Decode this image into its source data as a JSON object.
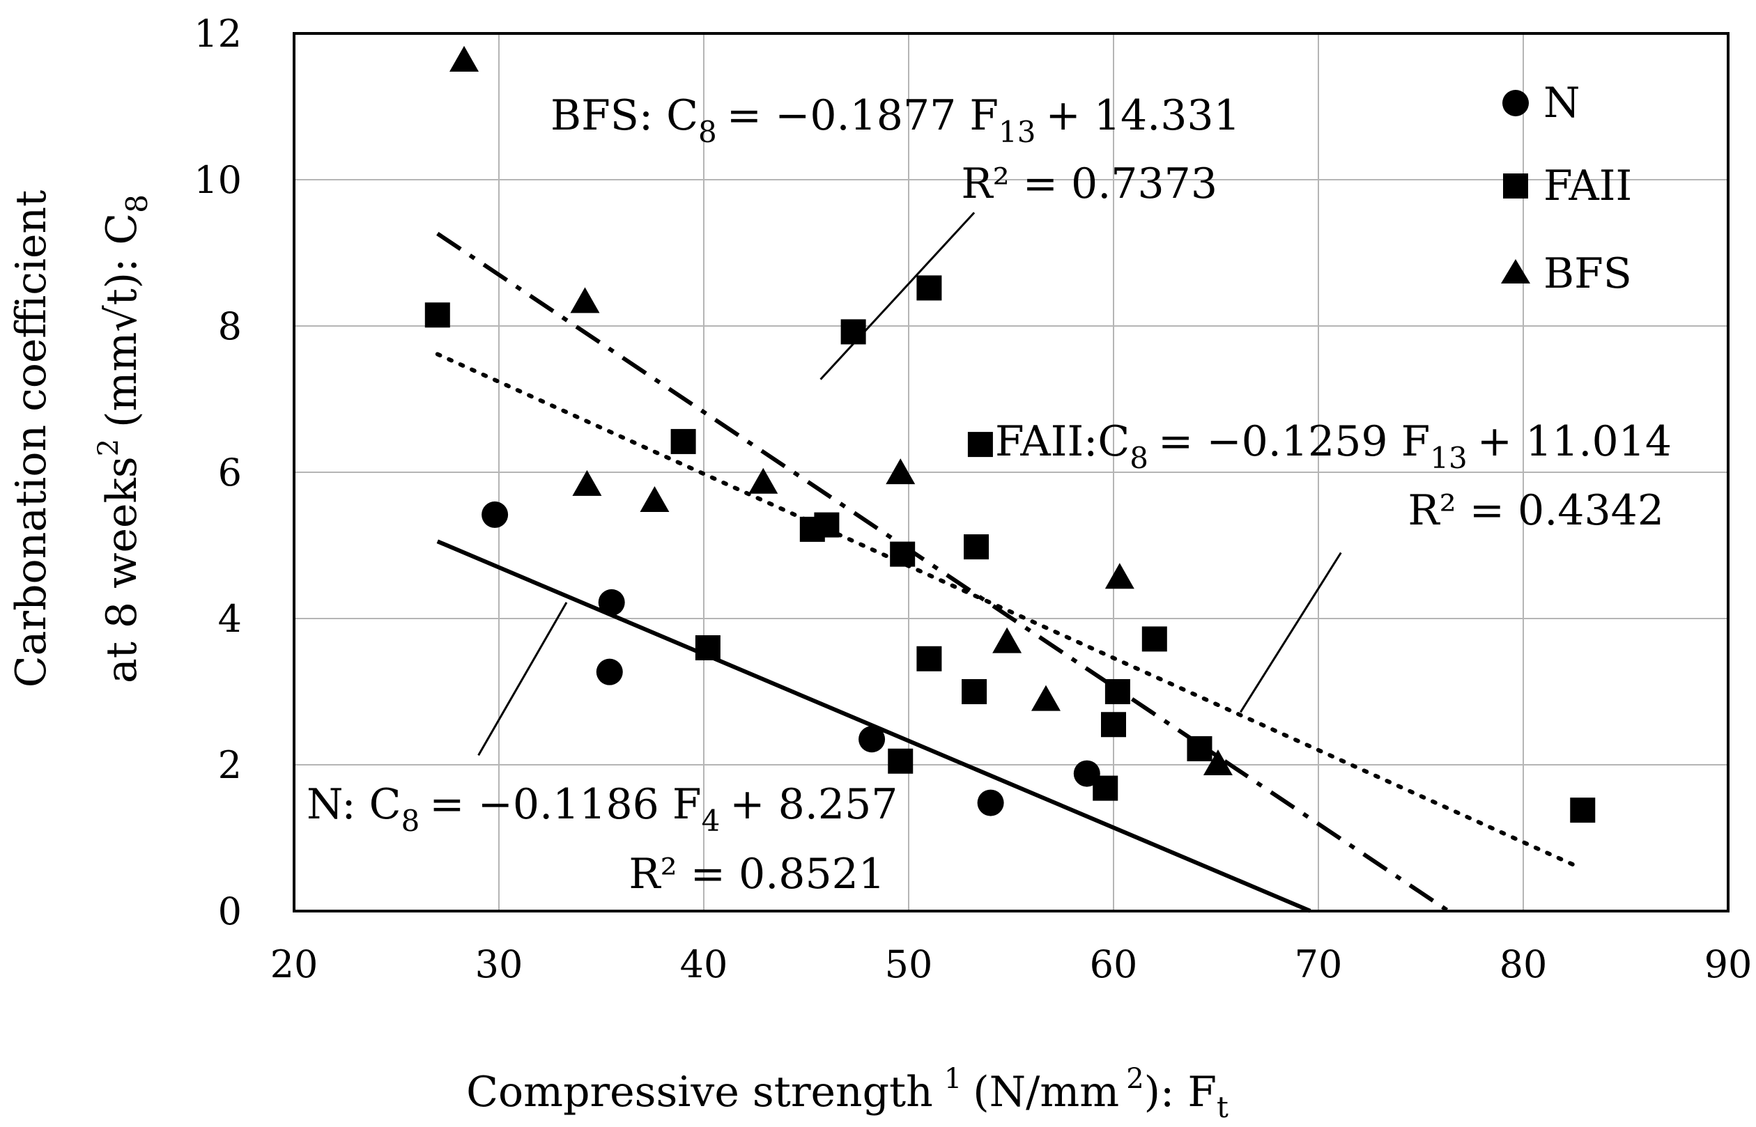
{
  "chart_data": {
    "type": "scatter",
    "xlabel": "Compressive strength 1 (N/mm 2): Ft",
    "xlabel_parts": {
      "main": "Compressive strength",
      "sup1": "1",
      "mid": "(N/mm",
      "sup2": "2",
      "end": "): F",
      "sub": "t"
    },
    "ylabel_line1": "Carbonation coefficient",
    "ylabel_line2": {
      "main": "at 8 weeks",
      "sup": "2",
      "end": "(mm√t): C",
      "sub": "8"
    },
    "xlim": [
      20,
      90
    ],
    "ylim": [
      0,
      12
    ],
    "xticks": [
      20,
      30,
      40,
      50,
      60,
      70,
      80,
      90
    ],
    "yticks": [
      0,
      2,
      4,
      6,
      8,
      10,
      12
    ],
    "grid": true,
    "legend_position": "top-right",
    "series": [
      {
        "name": "N",
        "marker": "circle",
        "points": [
          [
            29.8,
            5.42
          ],
          [
            35.5,
            4.22
          ],
          [
            35.4,
            3.27
          ],
          [
            48.2,
            2.35
          ],
          [
            54.0,
            1.48
          ],
          [
            58.7,
            1.88
          ]
        ]
      },
      {
        "name": "FAII",
        "marker": "square",
        "points": [
          [
            27.0,
            8.15
          ],
          [
            39.0,
            6.42
          ],
          [
            45.3,
            5.22
          ],
          [
            46.0,
            5.28
          ],
          [
            47.3,
            7.92
          ],
          [
            49.7,
            4.88
          ],
          [
            51.0,
            8.52
          ],
          [
            53.3,
            4.98
          ],
          [
            53.5,
            6.38
          ],
          [
            40.2,
            3.6
          ],
          [
            51.0,
            3.45
          ],
          [
            53.2,
            3.0
          ],
          [
            49.6,
            2.05
          ],
          [
            59.6,
            1.68
          ],
          [
            60.0,
            2.55
          ],
          [
            60.2,
            3.0
          ],
          [
            62.0,
            3.72
          ],
          [
            64.2,
            2.22
          ],
          [
            82.9,
            1.38
          ]
        ]
      },
      {
        "name": "BFS",
        "marker": "triangle",
        "points": [
          [
            28.3,
            11.62
          ],
          [
            34.2,
            8.32
          ],
          [
            34.3,
            5.82
          ],
          [
            37.6,
            5.6
          ],
          [
            42.9,
            5.85
          ],
          [
            49.6,
            5.98
          ],
          [
            54.8,
            3.67
          ],
          [
            56.7,
            2.88
          ],
          [
            60.3,
            4.55
          ],
          [
            65.1,
            2.0
          ]
        ]
      }
    ],
    "trendlines": [
      {
        "series": "N",
        "style": "solid",
        "slope": -0.1186,
        "intercept": 8.257,
        "x_from": 27,
        "x_to": 69.6,
        "equation_lhs": "N: C",
        "equation_lhs_sub": "8",
        "equation_rhs": "= −0.1186 F",
        "equation_rhs_sub": "4",
        "equation_tail": "+ 8.257",
        "r2": "R² = 0.8521"
      },
      {
        "series": "FAII",
        "style": "dotted",
        "slope": -0.1259,
        "intercept": 11.014,
        "x_from": 27,
        "x_to": 82.8,
        "equation_lhs": "FAII:C",
        "equation_lhs_sub": "8",
        "equation_rhs": "= −0.1259 F",
        "equation_rhs_sub": "13",
        "equation_tail": "+ 11.014",
        "r2": "R² = 0.4342"
      },
      {
        "series": "BFS",
        "style": "dashdot",
        "slope": -0.1877,
        "intercept": 14.331,
        "x_from": 27,
        "x_to": 76.3,
        "equation_lhs": "BFS: C",
        "equation_lhs_sub": "8",
        "equation_rhs": "= −0.1877 F",
        "equation_rhs_sub": "13",
        "equation_tail": "+ 14.331",
        "r2": "R² = 0.7373"
      }
    ],
    "callouts": [
      {
        "name": "bfs-callout-line",
        "from": [
          53.2,
          9.55
        ],
        "to": [
          45.7,
          7.27
        ]
      },
      {
        "name": "faii-callout-line",
        "from": [
          71.1,
          4.9
        ],
        "to": [
          66.2,
          2.72
        ]
      },
      {
        "name": "n-callout-line",
        "from": [
          29.0,
          2.13
        ],
        "to": [
          33.3,
          4.22
        ]
      }
    ]
  }
}
